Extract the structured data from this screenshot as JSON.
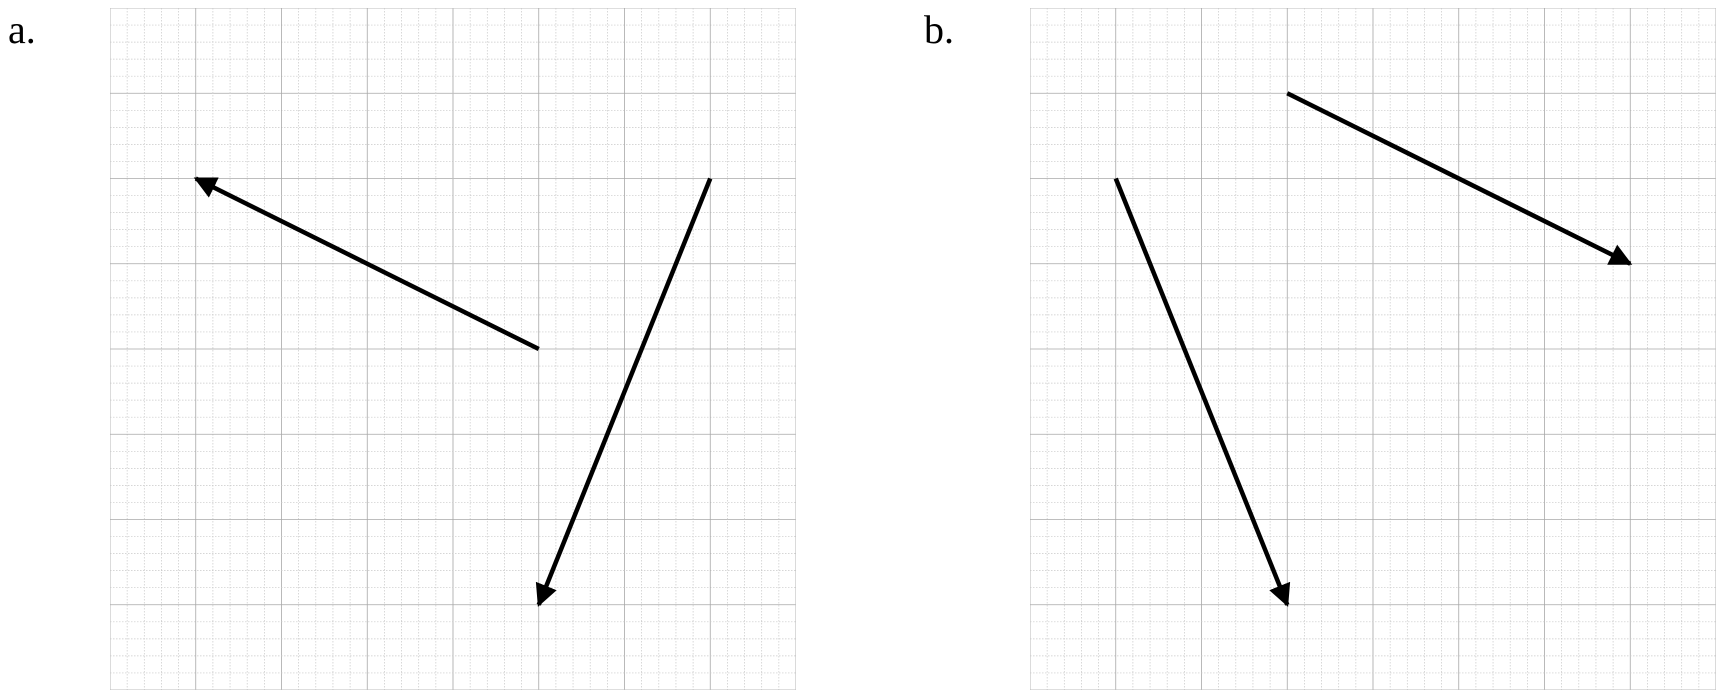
{
  "panels": [
    {
      "label": "a.",
      "grid": {
        "cells": 40,
        "minor_per_major": 5,
        "major_per_thick": 4
      },
      "vectors": [
        {
          "from": [
            25,
            20
          ],
          "to": [
            5,
            30
          ]
        },
        {
          "from": [
            35,
            30
          ],
          "to": [
            25,
            5
          ]
        }
      ]
    },
    {
      "label": "b.",
      "grid": {
        "cells": 40,
        "minor_per_major": 5,
        "major_per_thick": 4
      },
      "vectors": [
        {
          "from": [
            15,
            35
          ],
          "to": [
            35,
            25
          ]
        },
        {
          "from": [
            5,
            30
          ],
          "to": [
            15,
            5
          ]
        }
      ]
    }
  ],
  "colors": {
    "vector": "#000000",
    "grid_minor": "#c8c8c8",
    "grid_major": "#a8a8a8",
    "grid_thick": "#bdbdbd"
  }
}
